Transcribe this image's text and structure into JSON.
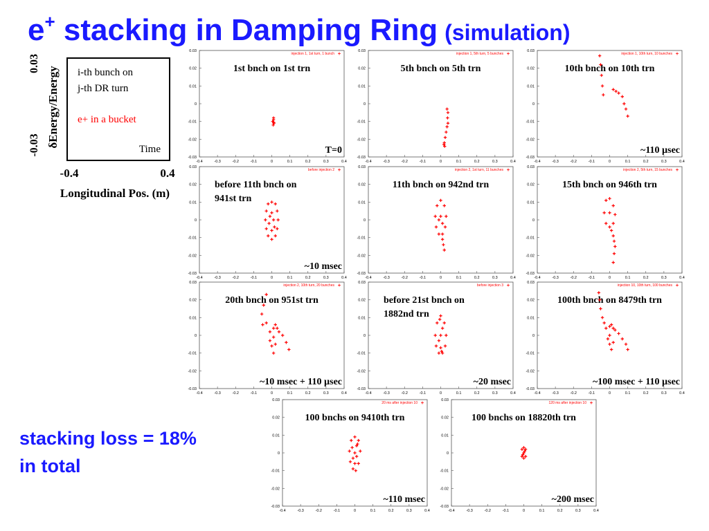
{
  "slide": {
    "title_main": "e",
    "title_sup": "+",
    "title_rest": " stacking in Damping Ring",
    "title_paren": "(simulation)",
    "loss_line1": "stacking loss = 18%",
    "loss_line2": "in total"
  },
  "key": {
    "y_top": "0.03",
    "y_bottom": "-0.03",
    "y_label": "δEnergy/Energy",
    "line1": "i-th bunch on",
    "line2": "j-th DR turn",
    "bucket": "e+ in a bucket",
    "time": "Time",
    "x_left": "-0.4",
    "x_right": "0.4",
    "x_label": "Longitudinal Pos. (m)"
  },
  "chart_data": [
    {
      "type": "scatter",
      "title": [
        "1st bnch on 1st trn"
      ],
      "annotation": "T=0",
      "xlim": [
        -0.4,
        0.4
      ],
      "xticks": [
        -0.4,
        -0.3,
        -0.2,
        -0.1,
        0,
        0.1,
        0.2,
        0.3,
        0.4
      ],
      "ylim": [
        -0.03,
        0.03
      ],
      "yticks": [
        0.03,
        0.02,
        0.01,
        0,
        -0.01,
        -0.02,
        -0.03
      ],
      "series": [
        {
          "name": "injection 1, 1st turn, 1 bunch",
          "color": "#ff0000",
          "x": [
            0.01,
            0.005,
            0.012,
            0.008,
            0.01,
            0.011
          ],
          "values": [
            -0.008,
            -0.01,
            -0.011,
            -0.012,
            -0.009,
            -0.0105
          ]
        }
      ]
    },
    {
      "type": "scatter",
      "title": [
        "5th bnch on 5th trn"
      ],
      "xlim": [
        -0.4,
        0.4
      ],
      "xticks": [
        -0.4,
        -0.3,
        -0.2,
        -0.1,
        0,
        0.1,
        0.2,
        0.3,
        0.4
      ],
      "ylim": [
        -0.03,
        0.03
      ],
      "yticks": [
        0.03,
        0.02,
        0.01,
        0,
        -0.01,
        -0.02,
        -0.03
      ],
      "series": [
        {
          "name": "injection 1, 5th turn, 5 bunches",
          "color": "#ff0000",
          "x": [
            0.035,
            0.04,
            0.038,
            0.04,
            0.035,
            0.03,
            0.025,
            0.02,
            0.018,
            0.022
          ],
          "values": [
            -0.003,
            -0.005,
            -0.008,
            -0.011,
            -0.013,
            -0.016,
            -0.019,
            -0.022,
            -0.023,
            -0.024
          ]
        }
      ]
    },
    {
      "type": "scatter",
      "title": [
        "10th bnch on 10th trn"
      ],
      "annotation": "~110 µsec",
      "xlim": [
        -0.4,
        0.4
      ],
      "xticks": [
        -0.4,
        -0.3,
        -0.2,
        -0.1,
        0,
        0.1,
        0.2,
        0.3,
        0.4
      ],
      "ylim": [
        -0.03,
        0.03
      ],
      "yticks": [
        0.03,
        0.02,
        0.01,
        0,
        -0.01,
        -0.02,
        -0.03
      ],
      "series": [
        {
          "name": "injection 1, 10th turn, 10 bunches",
          "color": "#ff0000",
          "x": [
            -0.055,
            -0.05,
            -0.045,
            -0.04,
            -0.035,
            0.02,
            0.035,
            0.05,
            0.07,
            0.08,
            0.09,
            0.1
          ],
          "values": [
            0.027,
            0.022,
            0.016,
            0.01,
            0.005,
            0.008,
            0.007,
            0.006,
            0.004,
            0,
            -0.003,
            -0.007
          ]
        }
      ]
    },
    {
      "type": "scatter",
      "title": [
        "before 11th bnch on",
        "941st trn"
      ],
      "annotation": "~10 msec",
      "xlim": [
        -0.4,
        0.4
      ],
      "xticks": [
        -0.4,
        -0.3,
        -0.2,
        -0.1,
        0,
        0.1,
        0.2,
        0.3,
        0.4
      ],
      "ylim": [
        -0.03,
        0.03
      ],
      "yticks": [
        0.03,
        0.02,
        0.01,
        0,
        -0.01,
        -0.02,
        -0.03
      ],
      "series": [
        {
          "name": "before injection 2",
          "color": "#ff0000",
          "x": [
            0,
            0.02,
            0.03,
            0.035,
            0.03,
            0.02,
            0,
            -0.02,
            -0.03,
            -0.035,
            -0.03,
            -0.02,
            0,
            0.01,
            -0.01,
            0.015,
            -0.015,
            0
          ],
          "values": [
            0.01,
            0.009,
            0.005,
            0,
            -0.005,
            -0.009,
            -0.011,
            -0.009,
            -0.005,
            0,
            0.005,
            0.009,
            0.004,
            0,
            0.002,
            -0.004,
            -0.002,
            -0.006
          ]
        }
      ]
    },
    {
      "type": "scatter",
      "title": [
        "11th bnch on 942nd trn"
      ],
      "xlim": [
        -0.4,
        0.4
      ],
      "xticks": [
        -0.4,
        -0.3,
        -0.2,
        -0.1,
        0,
        0.1,
        0.2,
        0.3,
        0.4
      ],
      "ylim": [
        -0.03,
        0.03
      ],
      "yticks": [
        0.03,
        0.02,
        0.01,
        0,
        -0.01,
        -0.02,
        -0.03
      ],
      "series": [
        {
          "name": "injection 2, 1st turn, 11 bunches",
          "color": "#ff0000",
          "x": [
            0,
            0.02,
            0.03,
            0.025,
            0.01,
            -0.01,
            -0.025,
            -0.03,
            -0.02,
            0,
            0.01,
            -0.01,
            0.01,
            0.015,
            0.02
          ],
          "values": [
            0.011,
            0.008,
            0.002,
            -0.004,
            -0.008,
            -0.008,
            -0.004,
            0.002,
            0.008,
            0.002,
            -0.002,
            0,
            -0.011,
            -0.014,
            -0.017
          ]
        }
      ]
    },
    {
      "type": "scatter",
      "title": [
        "15th bnch on 946th trn"
      ],
      "xlim": [
        -0.4,
        0.4
      ],
      "xticks": [
        -0.4,
        -0.3,
        -0.2,
        -0.1,
        0,
        0.1,
        0.2,
        0.3,
        0.4
      ],
      "ylim": [
        -0.03,
        0.03
      ],
      "yticks": [
        0.03,
        0.02,
        0.01,
        0,
        -0.01,
        -0.02,
        -0.03
      ],
      "series": [
        {
          "name": "injection 2, 5th turn, 15 bunches",
          "color": "#ff0000",
          "x": [
            -0.02,
            0,
            0.02,
            0.03,
            0.02,
            0,
            -0.02,
            -0.03,
            0,
            0.01,
            0.02,
            0.025,
            0.03,
            0.025,
            0.02
          ],
          "values": [
            0.011,
            0.012,
            0.008,
            0.003,
            -0.002,
            -0.004,
            -0.002,
            0.004,
            0.004,
            -0.006,
            -0.009,
            -0.012,
            -0.015,
            -0.019,
            -0.024
          ]
        }
      ]
    },
    {
      "type": "scatter",
      "title": [
        "20th bnch on 951st trn"
      ],
      "annotation": "~10 msec + 110 µsec",
      "xlim": [
        -0.4,
        0.4
      ],
      "xticks": [
        -0.4,
        -0.3,
        -0.2,
        -0.1,
        0,
        0.1,
        0.2,
        0.3,
        0.4
      ],
      "ylim": [
        -0.03,
        0.03
      ],
      "yticks": [
        0.03,
        0.02,
        0.01,
        0,
        -0.01,
        -0.02,
        -0.03
      ],
      "series": [
        {
          "name": "injection 2, 10th turn, 20 bunches",
          "color": "#ff0000",
          "x": [
            -0.03,
            -0.045,
            -0.055,
            -0.05,
            -0.03,
            -0.01,
            0.01,
            0.02,
            0.03,
            0.04,
            0.06,
            0.08,
            0.095,
            0,
            0.01,
            -0.01,
            0.02,
            0.01
          ],
          "values": [
            0.023,
            0.017,
            0.012,
            0.006,
            0.007,
            0.002,
            0.004,
            0.006,
            0.004,
            0.002,
            0,
            -0.004,
            -0.008,
            -0.006,
            -0.01,
            -0.003,
            -0.005,
            -0.001
          ]
        }
      ]
    },
    {
      "type": "scatter",
      "title": [
        "before 21st bnch on",
        "1882nd trn"
      ],
      "annotation": "~20 msec",
      "xlim": [
        -0.4,
        0.4
      ],
      "xticks": [
        -0.4,
        -0.3,
        -0.2,
        -0.1,
        0,
        0.1,
        0.2,
        0.3,
        0.4
      ],
      "ylim": [
        -0.03,
        0.03
      ],
      "yticks": [
        0.03,
        0.02,
        0.01,
        0,
        -0.01,
        -0.02,
        -0.03
      ],
      "series": [
        {
          "name": "before injection 3",
          "color": "#ff0000",
          "x": [
            0,
            0.02,
            0.03,
            0.025,
            0.01,
            -0.01,
            -0.025,
            -0.03,
            -0.02,
            0,
            0.01,
            -0.01,
            0,
            0.005,
            -0.005
          ],
          "values": [
            0.011,
            0.007,
            0,
            -0.006,
            -0.01,
            -0.01,
            -0.006,
            0,
            0.007,
            0,
            0.004,
            -0.003,
            -0.007,
            -0.009,
            0.009
          ]
        }
      ]
    },
    {
      "type": "scatter",
      "title": [
        "100th bnch on 8479th trn"
      ],
      "annotation": "~100 msec + 110 µsec",
      "xlim": [
        -0.4,
        0.4
      ],
      "xticks": [
        -0.4,
        -0.3,
        -0.2,
        -0.1,
        0,
        0.1,
        0.2,
        0.3,
        0.4
      ],
      "ylim": [
        -0.03,
        0.03
      ],
      "yticks": [
        0.03,
        0.02,
        0.01,
        0,
        -0.01,
        -0.02,
        -0.03
      ],
      "series": [
        {
          "name": "injection 10, 10th turn, 100 bunches",
          "color": "#ff0000",
          "x": [
            -0.06,
            -0.055,
            -0.05,
            -0.04,
            -0.03,
            -0.02,
            0,
            0.01,
            0.02,
            0.03,
            0.05,
            0.07,
            0.09,
            0.1,
            0,
            -0.01,
            0.01,
            0.02,
            0
          ],
          "values": [
            0.024,
            0.02,
            0.015,
            0.01,
            0.007,
            0.004,
            0.005,
            0.006,
            0.004,
            0.003,
            0.001,
            -0.002,
            -0.005,
            -0.008,
            -0.005,
            -0.002,
            -0.008,
            -0.004,
            0
          ]
        }
      ]
    },
    {
      "type": "scatter",
      "title": [
        "100 bnchs on 9410th trn"
      ],
      "annotation": "~110 msec",
      "xlim": [
        -0.4,
        0.4
      ],
      "xticks": [
        -0.4,
        -0.3,
        -0.2,
        -0.1,
        0,
        0.1,
        0.2,
        0.3,
        0.4
      ],
      "ylim": [
        -0.03,
        0.03
      ],
      "yticks": [
        0.03,
        0.02,
        0.01,
        0,
        -0.01,
        -0.02,
        -0.03
      ],
      "series": [
        {
          "name": "20 ms after injection 10",
          "color": "#ff0000",
          "x": [
            0,
            0.02,
            0.03,
            0.02,
            0.005,
            -0.01,
            -0.025,
            -0.03,
            -0.02,
            0,
            0.01,
            -0.01,
            0,
            0.01,
            -0.015,
            0.015
          ],
          "values": [
            0.009,
            0.007,
            0.001,
            -0.006,
            -0.01,
            -0.009,
            -0.005,
            0.001,
            0.007,
            0,
            0.004,
            -0.003,
            -0.006,
            -0.002,
            0.003,
            0.005
          ]
        }
      ]
    },
    {
      "type": "scatter",
      "title": [
        "100 bnchs on 18820th trn"
      ],
      "annotation": "~200 msec",
      "xlim": [
        -0.4,
        0.4
      ],
      "xticks": [
        -0.4,
        -0.3,
        -0.2,
        -0.1,
        0,
        0.1,
        0.2,
        0.3,
        0.4
      ],
      "ylim": [
        -0.03,
        0.03
      ],
      "yticks": [
        0.03,
        0.02,
        0.01,
        0,
        -0.01,
        -0.02,
        -0.03
      ],
      "series": [
        {
          "name": "120 ms after injection 10",
          "color": "#ff0000",
          "x": [
            0,
            0.01,
            0.01,
            0,
            -0.01,
            -0.01,
            0,
            0.005,
            -0.005
          ],
          "values": [
            0.003,
            0.002,
            -0.002,
            -0.003,
            -0.002,
            0.002,
            0,
            0.001,
            -0.001
          ]
        }
      ]
    }
  ]
}
